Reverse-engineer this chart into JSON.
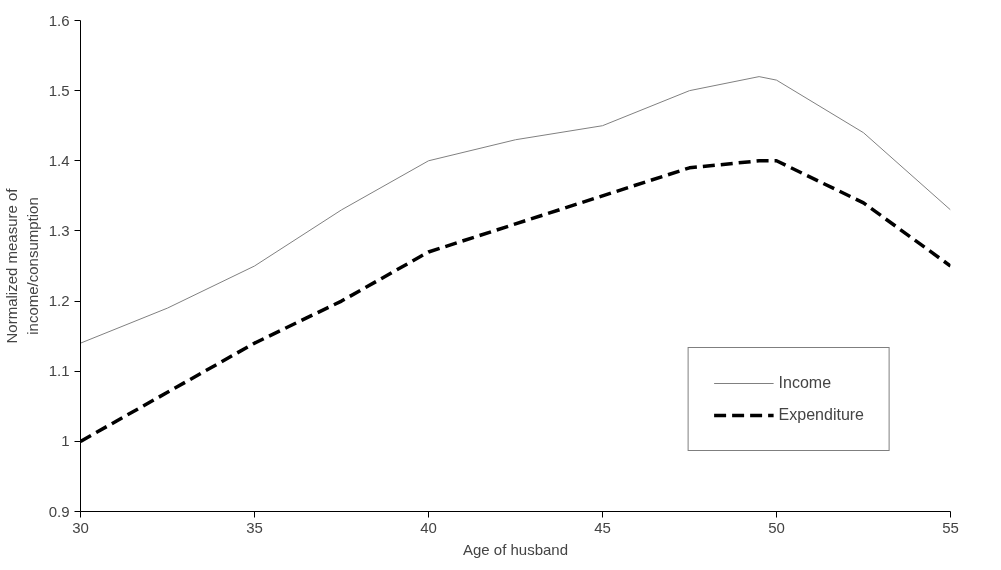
{
  "chart_data": {
    "type": "line",
    "xlabel": "Age of husband",
    "ylabel": "Normalized measure of\nincome/consumption",
    "x": [
      30,
      32.5,
      35,
      37.5,
      40,
      42.5,
      45,
      47.5,
      49.5,
      50,
      52.5,
      55
    ],
    "series": [
      {
        "name": "Income",
        "color": "#808080",
        "line_style": "solid",
        "values": [
          1.14,
          1.19,
          1.25,
          1.33,
          1.4,
          1.43,
          1.45,
          1.5,
          1.52,
          1.515,
          1.44,
          1.33
        ]
      },
      {
        "name": "Expenditure",
        "color": "#000000",
        "line_style": "dashed",
        "values": [
          1.0,
          1.07,
          1.14,
          1.2,
          1.27,
          1.31,
          1.35,
          1.39,
          1.4,
          1.4,
          1.34,
          1.25
        ]
      }
    ],
    "xlim": [
      30,
      55
    ],
    "xticks": [
      30,
      35,
      40,
      45,
      50,
      55
    ],
    "ylim": [
      0.9,
      1.6
    ],
    "yticks": [
      {
        "value": 0.9,
        "label": "0.9"
      },
      1,
      1.1,
      1.2,
      1.3,
      1.4,
      1.5,
      1.6
    ],
    "grid": false,
    "legend": "bottom right",
    "marker": "none"
  }
}
